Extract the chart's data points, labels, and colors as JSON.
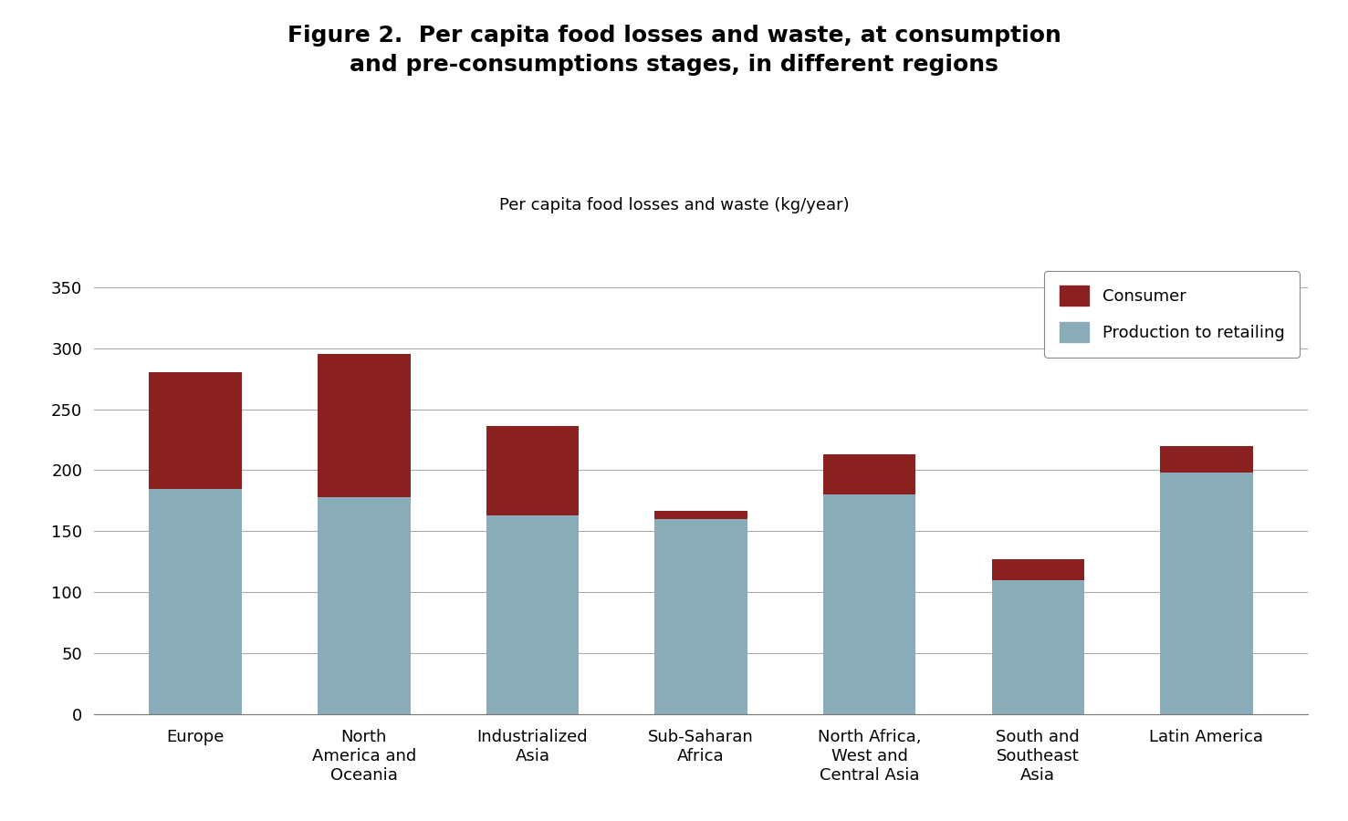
{
  "categories": [
    "Europe",
    "North\nAmerica and\nOceania",
    "Industrialized\nAsia",
    "Sub-Saharan\nAfrica",
    "North Africa,\nWest and\nCentral Asia",
    "South and\nSoutheast\nAsia",
    "Latin America"
  ],
  "production_values": [
    185,
    178,
    163,
    160,
    180,
    110,
    198
  ],
  "consumer_values": [
    95,
    117,
    73,
    7,
    33,
    17,
    22
  ],
  "production_color": "#8AACB8",
  "consumer_color": "#8B2020",
  "title": "Figure 2.  Per capita food losses and waste, at consumption\nand pre-consumptions stages, in different regions",
  "subtitle": "Per capita food losses and waste (kg/year)",
  "ylim": [
    0,
    370
  ],
  "yticks": [
    0,
    50,
    100,
    150,
    200,
    250,
    300,
    350
  ],
  "legend_consumer": "Consumer",
  "legend_production": "Production to retailing",
  "background_color": "#ffffff",
  "title_fontsize": 18,
  "subtitle_fontsize": 13,
  "tick_fontsize": 13,
  "legend_fontsize": 13,
  "bar_width": 0.55
}
